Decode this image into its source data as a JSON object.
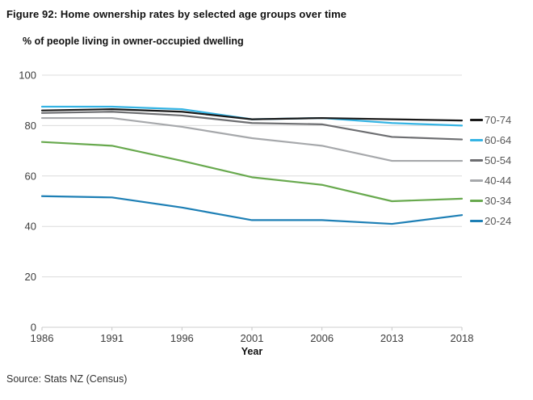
{
  "figure": {
    "title": "Figure 92: Home ownership rates by selected age groups over time",
    "subtitle": "% of people living in owner-occupied dwelling",
    "source": "Source: Stats NZ (Census)"
  },
  "chart_data": {
    "type": "line",
    "title": "Figure 92: Home ownership rates by selected age groups over time",
    "subtitle": "% of people living in owner-occupied dwelling",
    "xlabel": "Year",
    "ylabel": "% of people living in owner-occupied dwelling",
    "categories": [
      "1986",
      "1991",
      "1996",
      "2001",
      "2006",
      "2013",
      "2018"
    ],
    "y_ticks": [
      0,
      20,
      40,
      60,
      80,
      100
    ],
    "ylim": [
      0,
      100
    ],
    "grid": "horizontal",
    "legend_position": "right",
    "series": [
      {
        "name": "70-74",
        "color": "#1a1a1a",
        "values": [
          86,
          86.5,
          85.5,
          82.5,
          83,
          82.5,
          82
        ]
      },
      {
        "name": "60-64",
        "color": "#35b4e4",
        "values": [
          87.5,
          87.5,
          86.5,
          82.5,
          83,
          81,
          80
        ]
      },
      {
        "name": "50-54",
        "color": "#6d6e71",
        "values": [
          85,
          85.5,
          84,
          81,
          80.5,
          75.5,
          74.5
        ]
      },
      {
        "name": "40-44",
        "color": "#a6a8ab",
        "values": [
          83,
          83,
          79.5,
          75,
          72,
          66,
          66
        ]
      },
      {
        "name": "30-34",
        "color": "#68a94e",
        "values": [
          73.5,
          72,
          66,
          59.5,
          56.5,
          50,
          51
        ]
      },
      {
        "name": "20-24",
        "color": "#1d7fb5",
        "values": [
          52,
          51.5,
          47.5,
          42.5,
          42.5,
          41,
          44.5
        ]
      }
    ]
  }
}
